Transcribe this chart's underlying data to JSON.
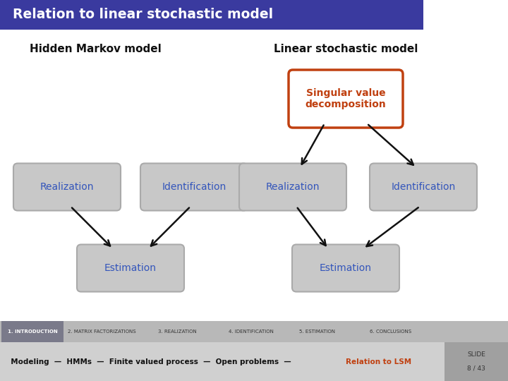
{
  "title": "Relation to linear stochastic model",
  "title_bg": "#3a3a9f",
  "title_color": "#ffffff",
  "hmm_label": "Hidden Markov model",
  "lsm_label": "Linear stochastic model",
  "header_color": "#111111",
  "box_bg": "#c8c8c8",
  "box_edge": "#aaaaaa",
  "box_text_color": "#3355bb",
  "svd_bg": "#ffffff",
  "svd_border": "#c04010",
  "svd_text_color": "#c04010",
  "svd_label": "Singular value\ndecomposition",
  "arrow_color": "#111111",
  "footer_bg": "#b8b8b8",
  "footer_active_bg": "#7a7a8a",
  "footer_items": [
    "1. INTRODUCTION",
    "2. MATRIX FACTORIZATIONS",
    "3. REALIZATION",
    "4. IDENTIFICATION",
    "5. ESTIMATION",
    "6. CONCLUSIONS"
  ],
  "footer_active": "1. INTRODUCTION",
  "nav_bg": "#d0d0d0",
  "slide_bg": "#a0a0a0",
  "nav_items": [
    "Modeling",
    "HMMs",
    "Finite valued process",
    "Open problems",
    "Relation to LSM"
  ],
  "nav_active": "Relation to LSM",
  "nav_active_color": "#c04010"
}
